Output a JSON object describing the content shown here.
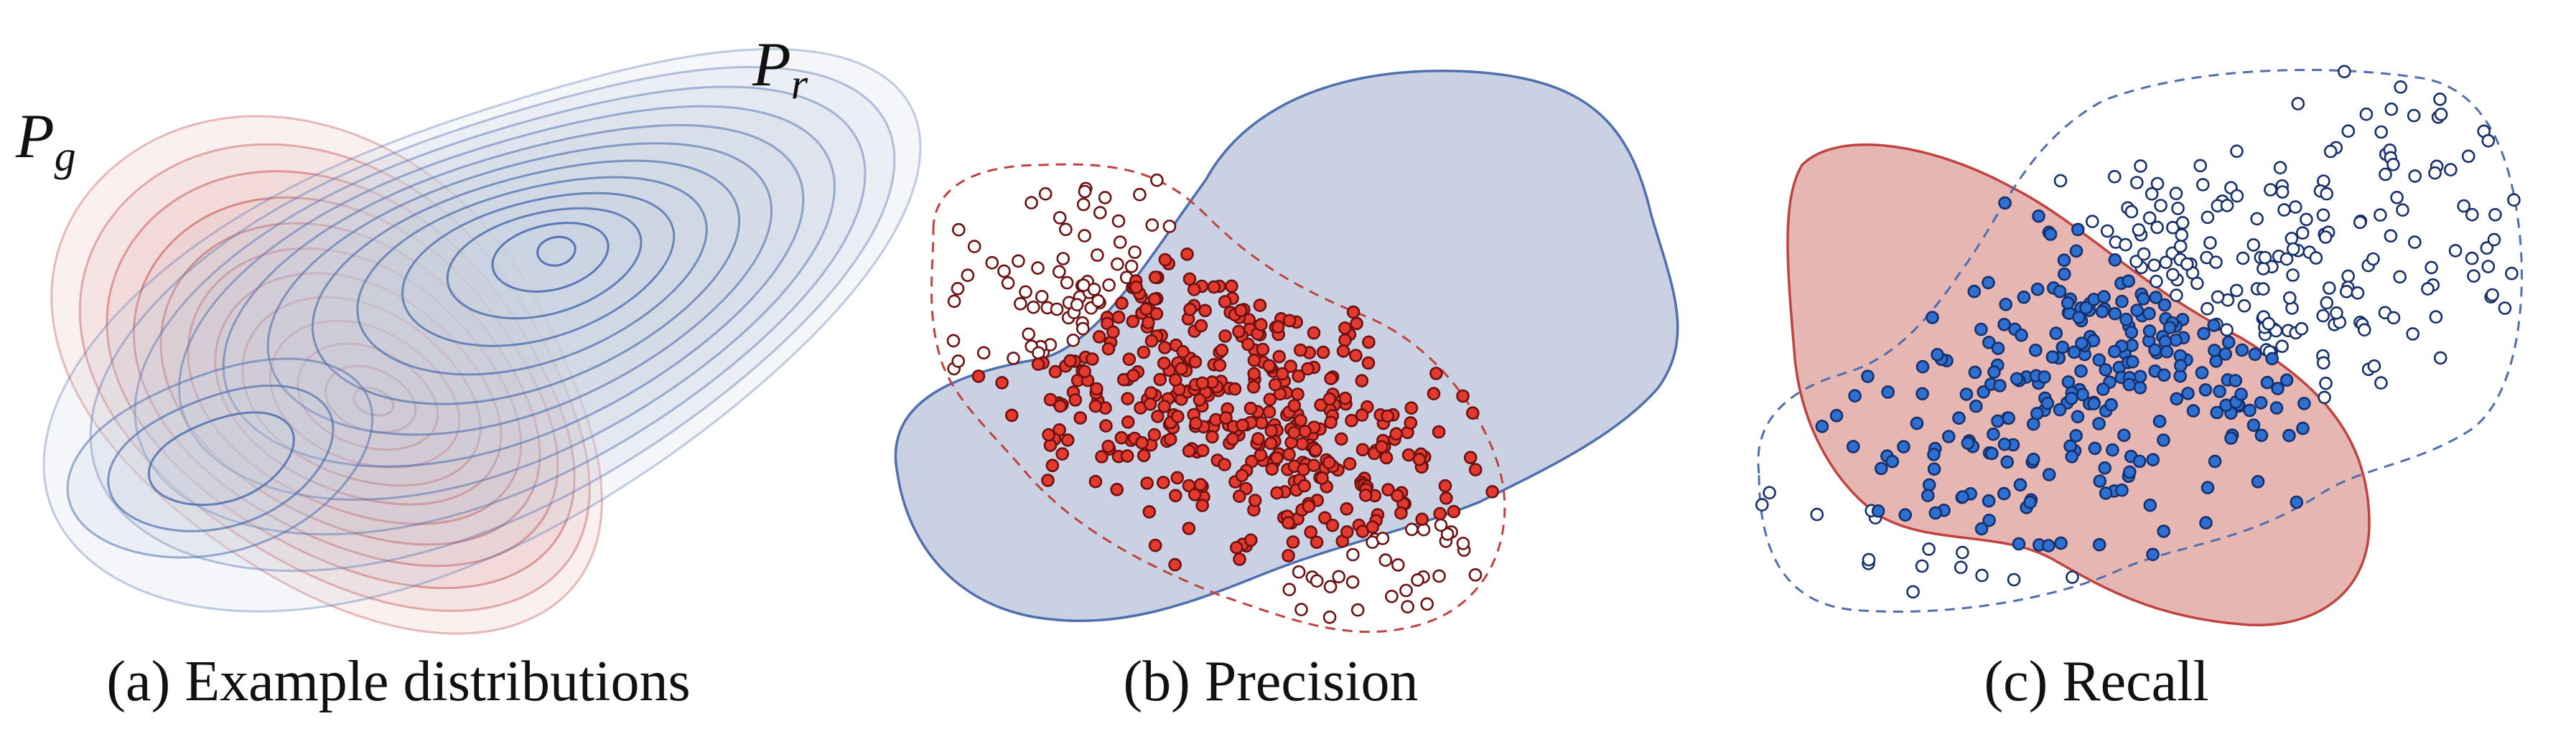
{
  "panels": [
    {
      "caption": "(a) Example distributions",
      "labels": {
        "generated": "P",
        "generated_sub": "g",
        "real": "P",
        "real_sub": "r"
      }
    },
    {
      "caption": "(b) Precision"
    },
    {
      "caption": "(c) Recall"
    }
  ],
  "colors": {
    "real_fill": "#c9d1e3",
    "real_stroke": "#4f6fae",
    "real_point": "#2f6fd0",
    "real_point_edge": "#15306b",
    "gen_fill": "#e6b6b3",
    "gen_stroke": "#c0433f",
    "gen_point": "#e33a2f",
    "gen_point_edge": "#6e1010"
  }
}
